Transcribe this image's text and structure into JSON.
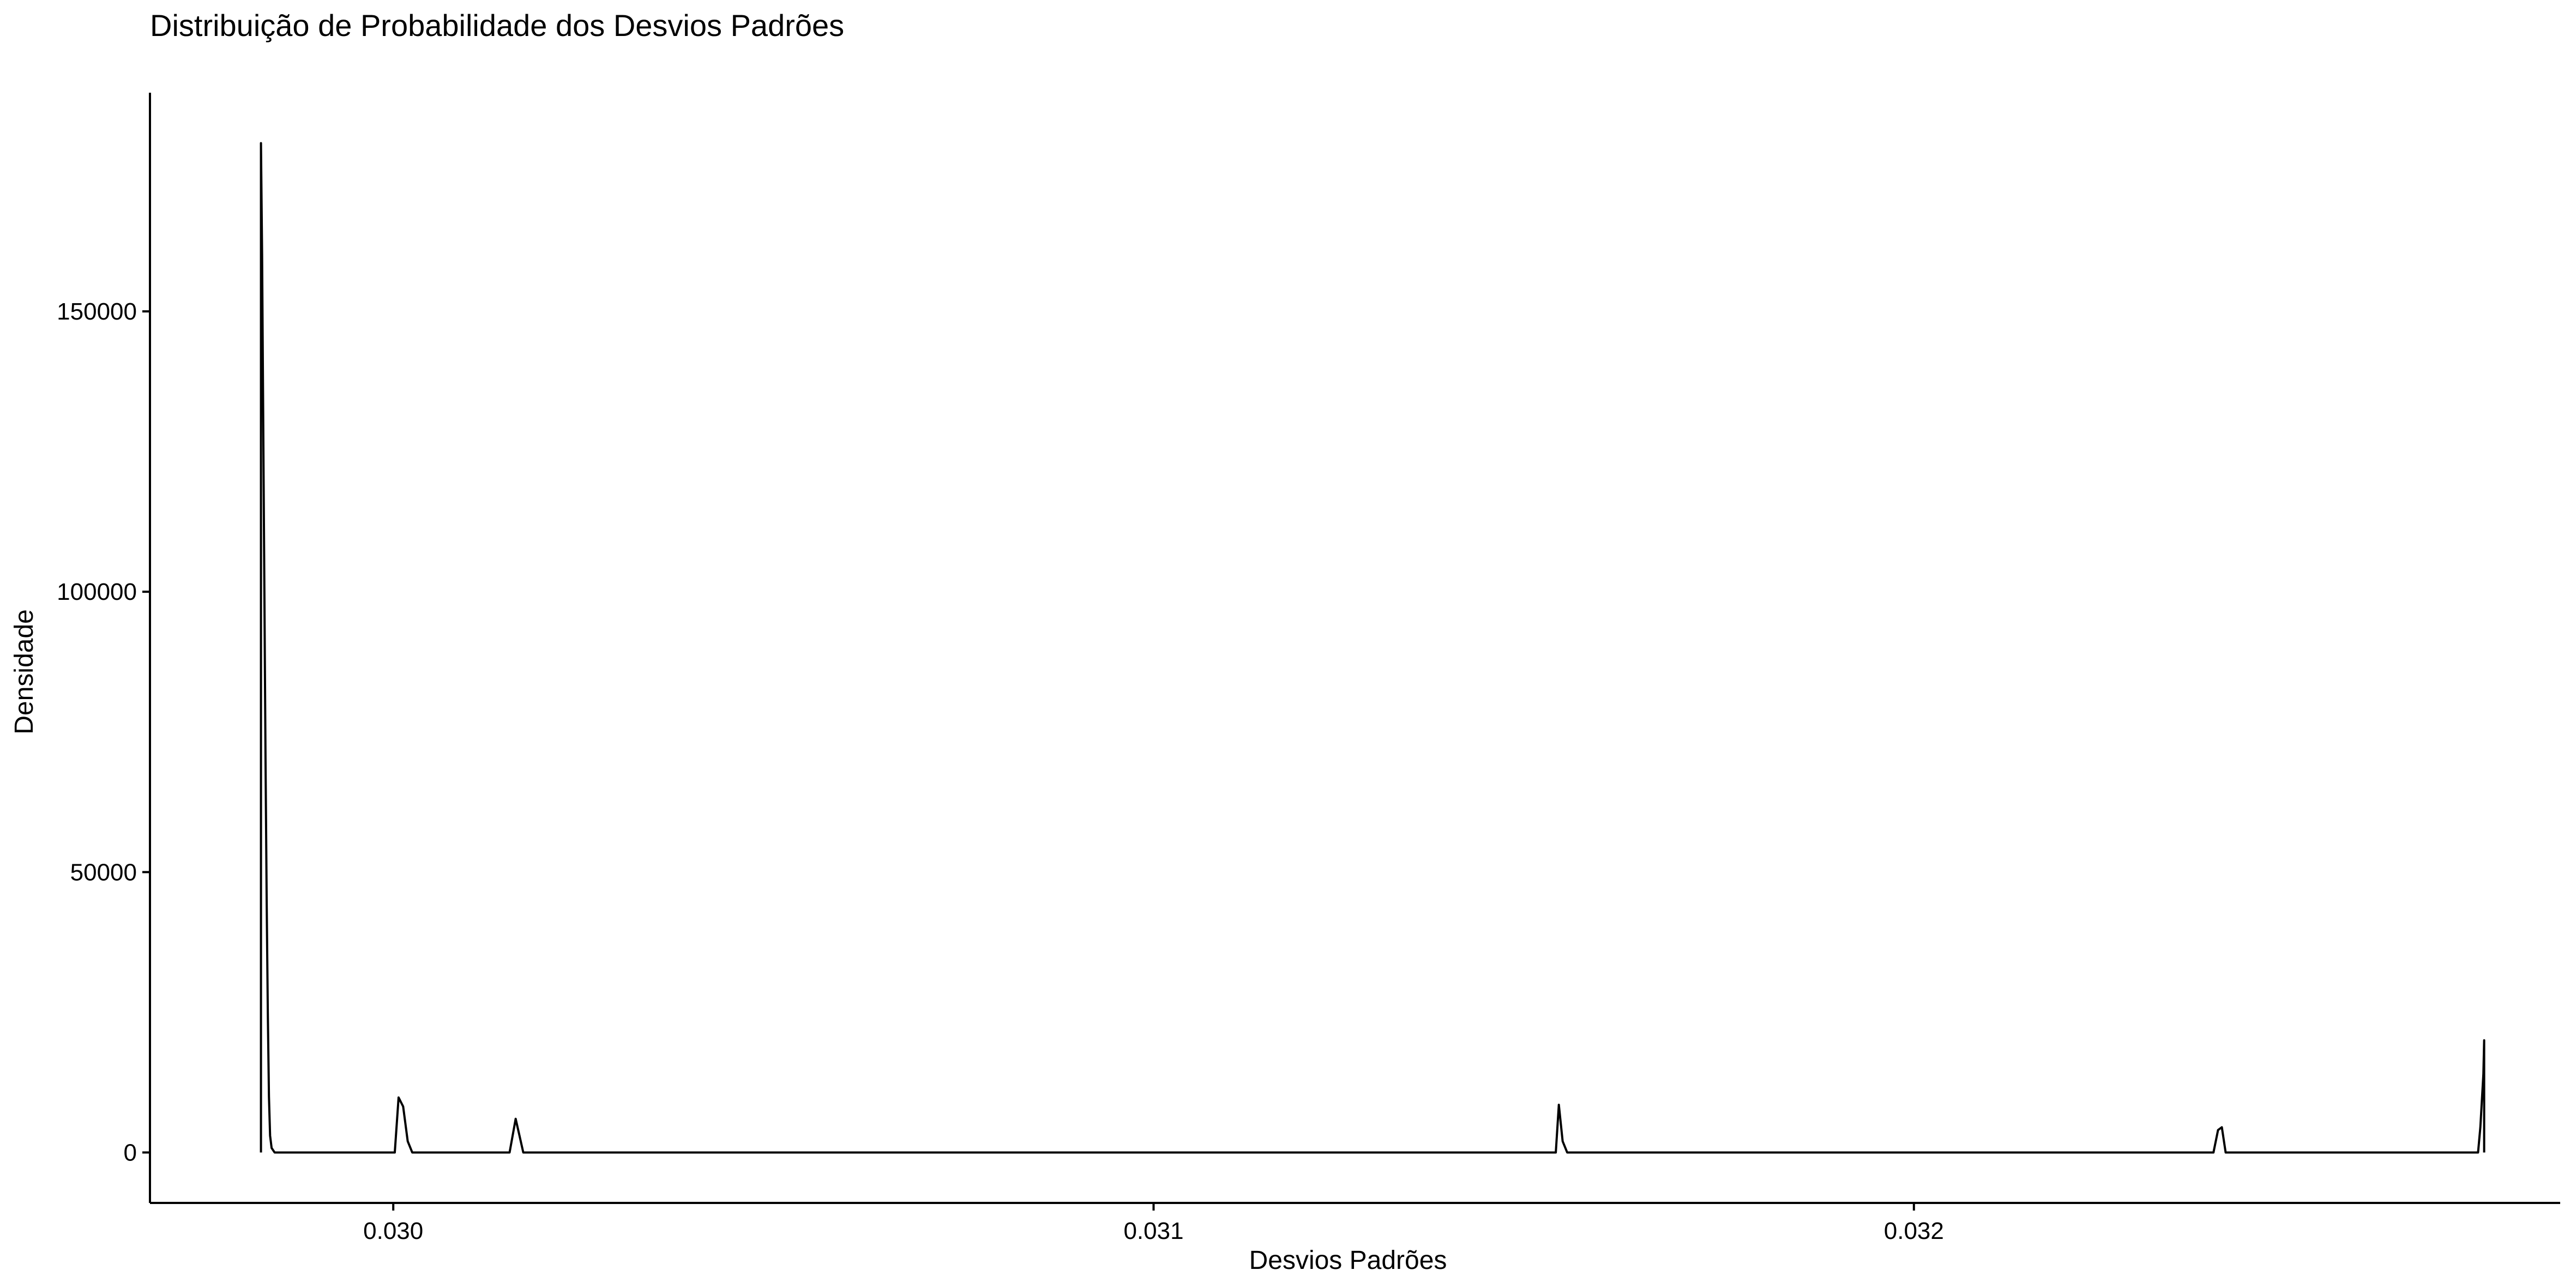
{
  "chart_data": {
    "type": "line",
    "title": "Distribuição de Probabilidade dos Desvios Padrões",
    "xlabel": "Desvios Padrões",
    "ylabel": "Densidade",
    "xlim": [
      0.02968,
      0.03285
    ],
    "ylim": [
      -9000,
      189000
    ],
    "xticks": [
      0.03,
      0.031,
      0.032
    ],
    "xtick_labels": [
      "0.030",
      "0.031",
      "0.032"
    ],
    "yticks": [
      0,
      50000,
      100000,
      150000
    ],
    "ytick_labels": [
      "0",
      "50000",
      "100000",
      "150000"
    ],
    "grid": false,
    "series": [
      {
        "color": "#000000",
        "x": [
          0.029826,
          0.029826,
          0.0298275,
          0.029829,
          0.0298305,
          0.029832,
          0.0298335,
          0.029835,
          0.0298365,
          0.029838,
          0.02984,
          0.029844,
          0.030002,
          0.030007,
          0.030013,
          0.030019,
          0.030025,
          0.030153,
          0.030161,
          0.030166,
          0.030171,
          0.030178,
          0.031529,
          0.031533,
          0.031538,
          0.031544,
          0.032394,
          0.0324,
          0.032405,
          0.03241,
          0.032416,
          0.032742,
          0.032745,
          0.032749,
          0.03275,
          0.03275
        ],
        "y": [
          0,
          180000,
          160000,
          130000,
          100000,
          70000,
          45000,
          25000,
          10000,
          3000,
          800,
          0,
          0,
          9800,
          8200,
          2000,
          0,
          0,
          6000,
          3000,
          0,
          0,
          0,
          8500,
          2000,
          0,
          0,
          4000,
          4500,
          0,
          0,
          0,
          4500,
          14000,
          20000,
          0
        ]
      }
    ]
  }
}
